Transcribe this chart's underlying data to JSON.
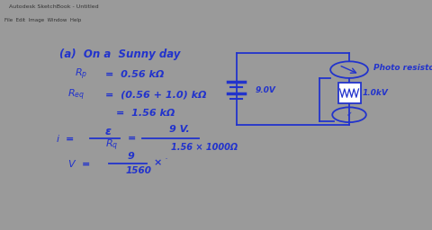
{
  "bg_outer": "#9a9a9a",
  "bg_toolbar_left": "#787878",
  "bg_canvas": "#ffffff",
  "bg_titlebar": "#e8e8e8",
  "bg_menubar": "#f0f0f0",
  "bg_bottom": "#c0c0c0",
  "ink": "#2233cc",
  "title_text": "Autodesk SketchBook - Untitled",
  "menu_text": "File  Edit  Image  Window  Help",
  "battery_label": "9.0V",
  "resistor_label": "1.0kV",
  "photo_label": "Photo resistor",
  "figw": 4.8,
  "figh": 2.56,
  "dpi": 100
}
